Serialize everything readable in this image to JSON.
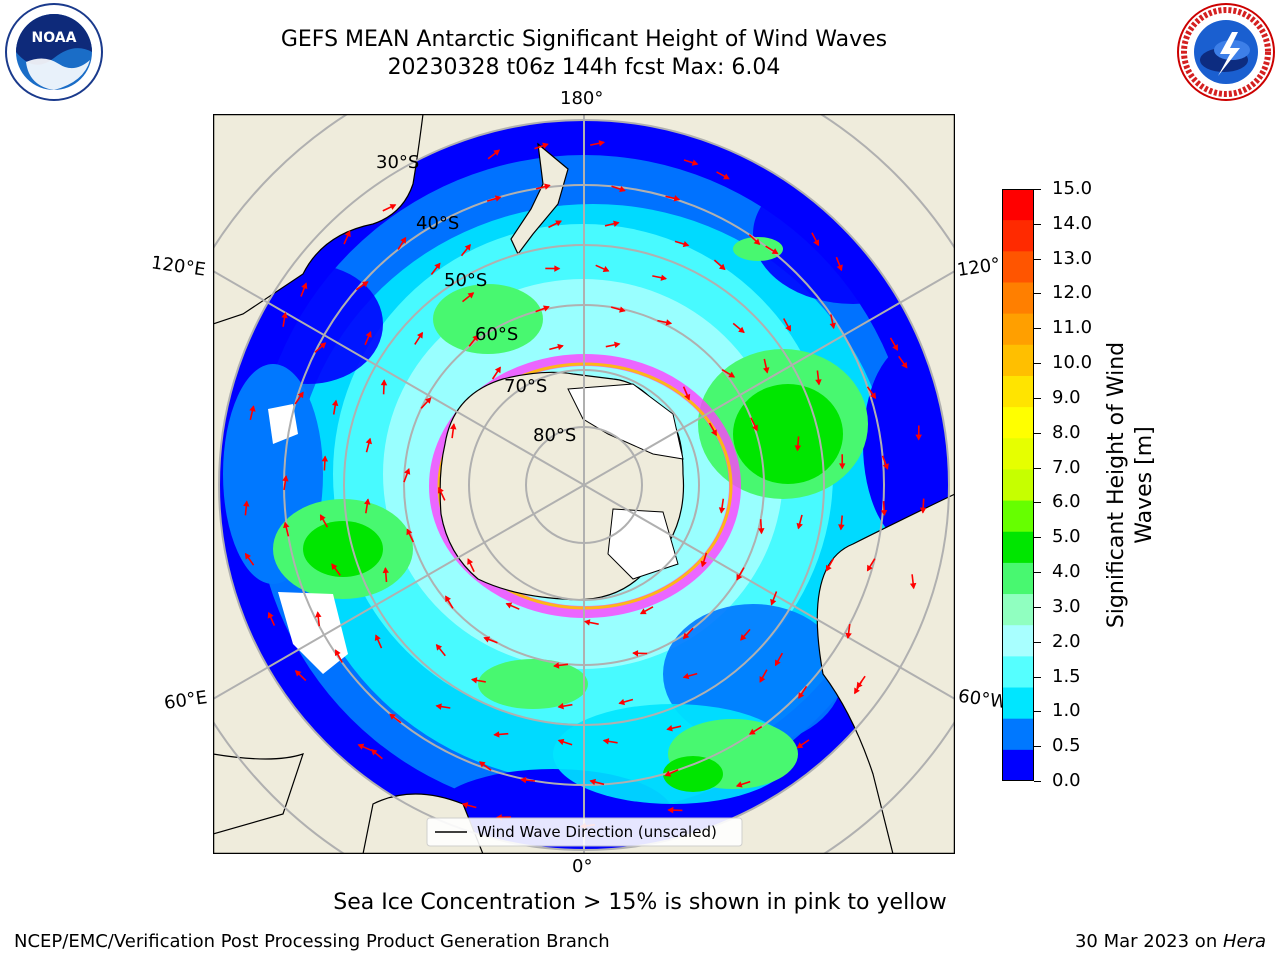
{
  "header": {
    "title_line1": "GEFS MEAN Antarctic Significant Height of Wind Waves",
    "title_line2": "20230328 t06z 144h fcst   Max: 6.04"
  },
  "logos": {
    "left": {
      "name": "noaa-logo",
      "text": "NOAA"
    },
    "right": {
      "name": "national-weather-service-logo",
      "text": "NATIONAL WEATHER SERVICE"
    }
  },
  "map": {
    "projection": "south-polar-stereographic",
    "longitude_labels": {
      "top": "180°",
      "bottom": "0°",
      "upper_left": "120°E",
      "upper_right": "120°",
      "lower_left": "60°E",
      "lower_right": "60°W"
    },
    "latitude_labels": [
      "30°S",
      "40°S",
      "50°S",
      "60°S",
      "70°S",
      "80°S"
    ],
    "legend_label": "Wind Wave Direction (unscaled)",
    "colors": {
      "land": "#efecdc",
      "arrows": "#ff0000",
      "sea_ice": "#ff40ff",
      "grid": "#b0b0b0"
    }
  },
  "colorbar": {
    "label": "Significant Height of Wind Waves [m]",
    "label_line1": "Significant Height of Wind",
    "label_line2": "Waves [m]",
    "ticks": [
      "15.0",
      "14.0",
      "13.0",
      "12.0",
      "11.0",
      "10.0",
      "9.0",
      "8.0",
      "7.0",
      "6.0",
      "5.0",
      "4.0",
      "3.0",
      "2.0",
      "1.5",
      "1.0",
      "0.5",
      "0.0"
    ],
    "bins_top_to_bottom": [
      "#ff0000",
      "#ff2a00",
      "#ff5500",
      "#ff7f00",
      "#ff9f00",
      "#ffbf00",
      "#ffe400",
      "#ffff00",
      "#e6ff00",
      "#c6ff00",
      "#66ff00",
      "#00e600",
      "#48f870",
      "#90ffc0",
      "#a8ffff",
      "#55ffff",
      "#00e6ff",
      "#0078ff",
      "#0000ff"
    ]
  },
  "footer": {
    "sea_ice_note": "Sea Ice Concentration > 15% is shown in pink to yellow",
    "left": "NCEP/EMC/Verification Post Processing Product Generation Branch",
    "right_date": "30 Mar 2023 on ",
    "right_host": "Hera"
  }
}
